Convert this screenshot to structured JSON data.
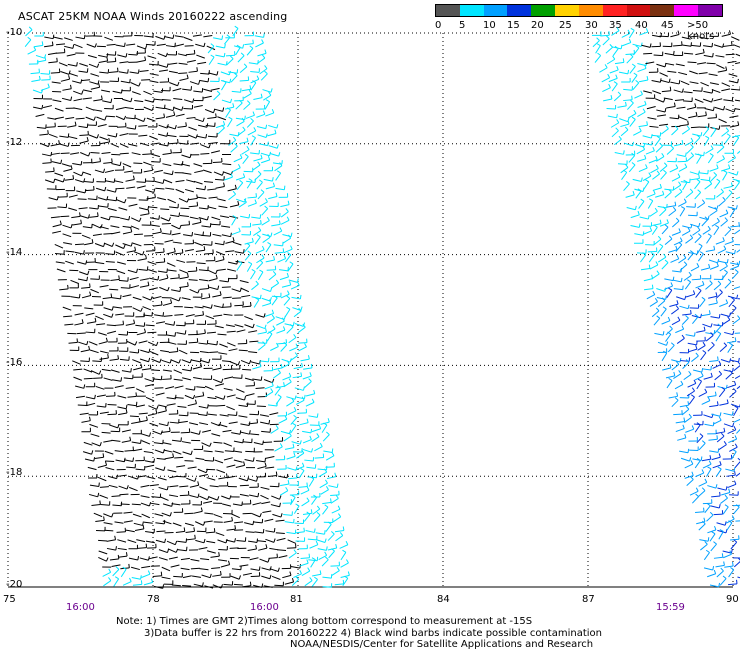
{
  "title": "ASCAT 25KM NOAA Winds 20160222 ascending",
  "legend": {
    "colors": [
      "#555555",
      "#00e5ff",
      "#00a0ff",
      "#0033dd",
      "#00a000",
      "#ffd200",
      "#ff8c00",
      "#ff2222",
      "#d01010",
      "#7a3010",
      "#ff00ff",
      "#8000aa"
    ],
    "tick_labels": [
      "0",
      "5",
      "10",
      "15",
      "20",
      "25",
      "30",
      "35",
      "40",
      "45",
      ">50 knots"
    ]
  },
  "axes": {
    "lon_labels": [
      "75",
      "78",
      "81",
      "84",
      "87",
      "90"
    ],
    "lat_labels": [
      "-10",
      "-12",
      "-14",
      "-16",
      "-18",
      "-20"
    ],
    "time_labels": [
      "16:00",
      "16:00",
      "15:59"
    ]
  },
  "notes": {
    "line1": "Note: 1) Times are GMT 2)Times along bottom correspond to measurement at -15S",
    "line2": "3)Data buffer is 22 hrs from 20160222 4) Black wind barbs indicate possible contamination",
    "line3": "NOAA/NESDIS/Center for Satellite Applications and Research"
  },
  "colors": {
    "contaminated": "#000000",
    "cyan": "#00e5ff",
    "light_blue": "#00a0ff",
    "blue": "#0033dd",
    "grid": "#000000",
    "time_label": "#6b008f"
  }
}
